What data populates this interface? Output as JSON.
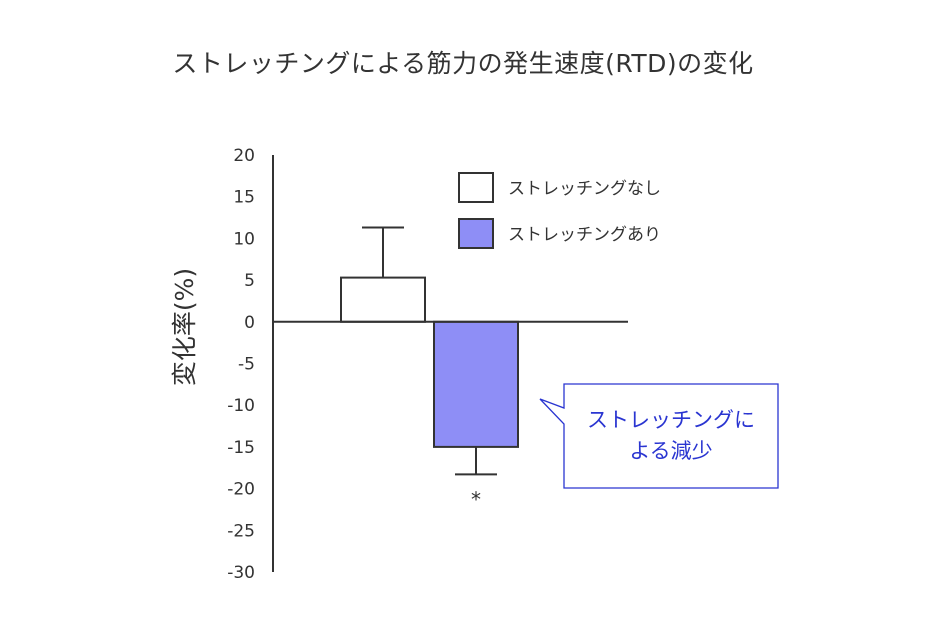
{
  "chart_data": {
    "type": "bar",
    "title": "ストレッチングによる筋力の発生速度(RTD)の変化",
    "ylabel": "変化率(%)",
    "xlabel": "",
    "ylim": [
      -30,
      20
    ],
    "yticks": [
      20,
      15,
      10,
      5,
      0,
      -5,
      -10,
      -15,
      -20,
      -25,
      -30
    ],
    "grid": false,
    "legend_position": "top-right",
    "series": [
      {
        "name": "ストレッチングなし",
        "value": 5.3,
        "error": 6.0,
        "color": "#ffffff",
        "annotation": ""
      },
      {
        "name": "ストレッチングあり",
        "value": -15.0,
        "error": 3.3,
        "color": "#8e8ef6",
        "annotation": "*"
      }
    ],
    "callout": {
      "lines": [
        "ストレッチングに",
        "よる減少"
      ],
      "color": "#2a35d1"
    }
  }
}
